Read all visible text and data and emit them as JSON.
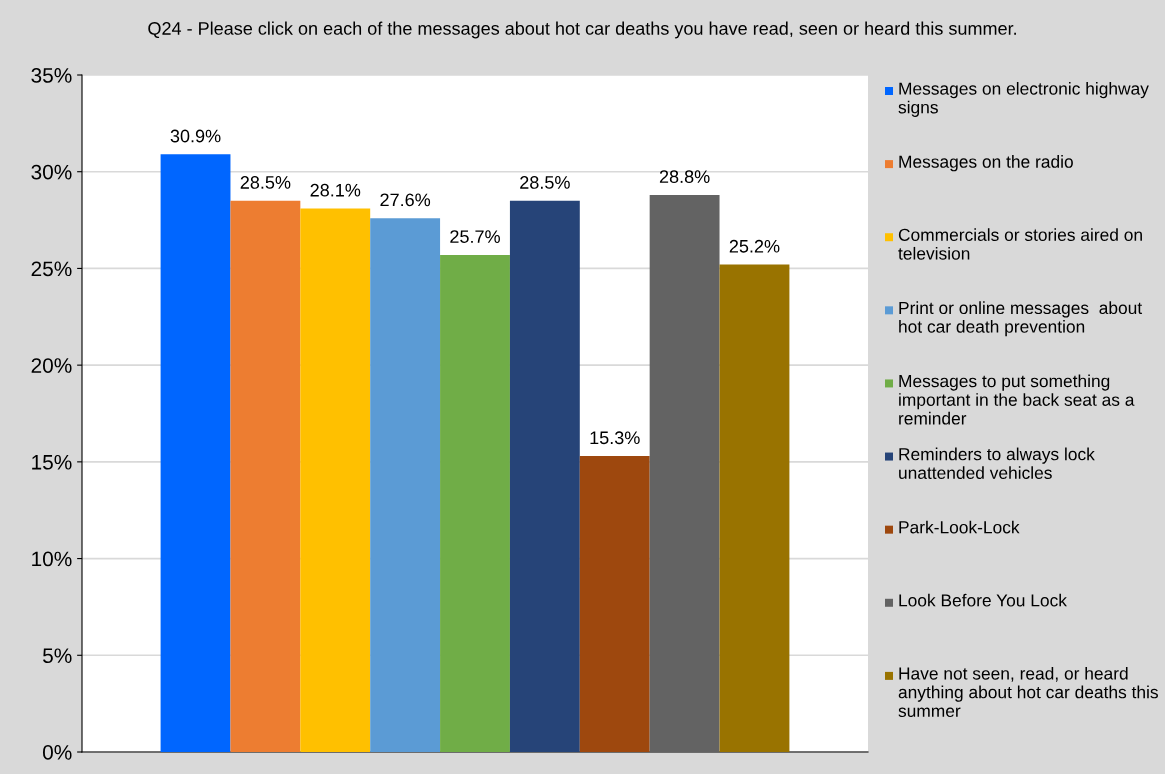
{
  "chart_data": {
    "type": "bar",
    "title": "Q24 - Please click on each of the messages about hot car deaths you have read, seen or heard this summer.",
    "categories": [
      null
    ],
    "series": [
      {
        "name": "Messages on electronic highway signs",
        "color": "#0066ff",
        "values": [
          30.9
        ],
        "value_labels": [
          "30.9%"
        ]
      },
      {
        "name": "Messages on the radio",
        "color": "#ed7d31",
        "values": [
          28.5
        ],
        "value_labels": [
          "28.5%"
        ]
      },
      {
        "name": "Commercials or stories aired on television",
        "color": "#ffc000",
        "values": [
          28.1
        ],
        "value_labels": [
          "28.1%"
        ]
      },
      {
        "name": "Print or online messages  about hot car death prevention",
        "color": "#5b9bd5",
        "values": [
          27.6
        ],
        "value_labels": [
          "27.6%"
        ]
      },
      {
        "name": "Messages to put something important in the back seat as a reminder",
        "color": "#70ad47",
        "values": [
          25.7
        ],
        "value_labels": [
          "25.7%"
        ]
      },
      {
        "name": "Reminders to always lock unattended vehicles",
        "color": "#264478",
        "values": [
          28.5
        ],
        "value_labels": [
          "28.5%"
        ]
      },
      {
        "name": "Park-Look-Lock",
        "color": "#9e480e",
        "values": [
          15.3
        ],
        "value_labels": [
          "15.3%"
        ]
      },
      {
        "name": "Look Before You Lock",
        "color": "#636363",
        "values": [
          28.8
        ],
        "value_labels": [
          "28.8%"
        ]
      },
      {
        "name": "Have not seen, read, or heard anything about hot car deaths this summer",
        "color": "#997300",
        "values": [
          25.2
        ],
        "value_labels": [
          "25.2%"
        ]
      }
    ],
    "ylim": [
      0,
      35
    ],
    "yticks": [
      {
        "value": 0,
        "label": "0%"
      },
      {
        "value": 5,
        "label": "5%"
      },
      {
        "value": 10,
        "label": "10%"
      },
      {
        "value": 15,
        "label": "15%"
      },
      {
        "value": 20,
        "label": "20%"
      },
      {
        "value": 25,
        "label": "25%"
      },
      {
        "value": 30,
        "label": "30%"
      },
      {
        "value": 35,
        "label": "35%"
      }
    ],
    "grid": "y",
    "legend": "right"
  }
}
